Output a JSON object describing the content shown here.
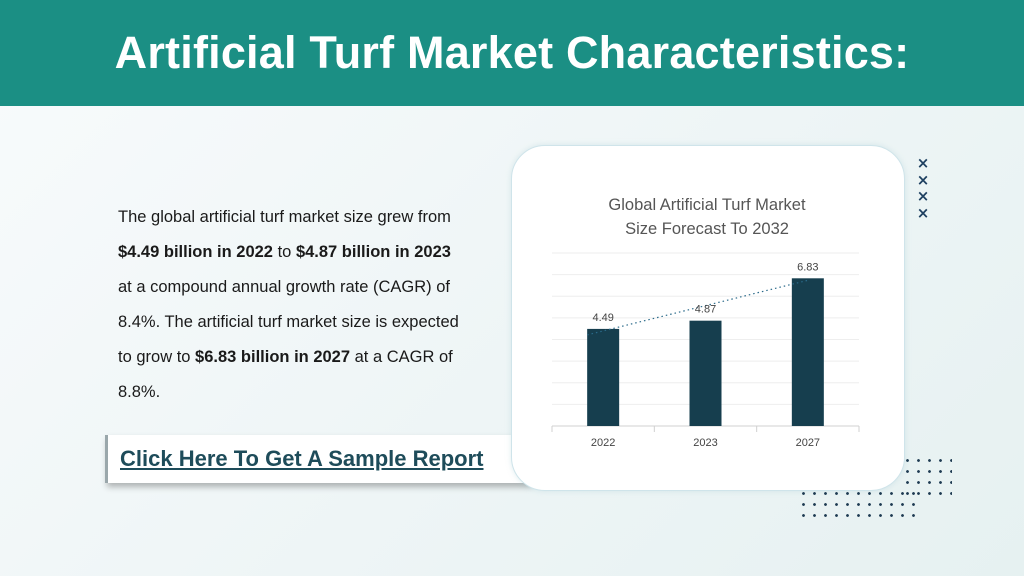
{
  "header": {
    "title": "Artificial Turf Market Characteristics:"
  },
  "body_text": {
    "p1": "The global artificial turf market size grew from ",
    "b1": "$4.49 billion in 2022",
    "p2": " to ",
    "b2": "$4.87 billion in 2023",
    "p3": " at a compound annual growth rate (CAGR) of 8.4%. The artificial turf market size is expected to grow to ",
    "b3": "$6.83 billion in 2027",
    "p4": " at a CAGR of 8.8%."
  },
  "cta": {
    "label": "Click Here To Get A Sample Report"
  },
  "decorations": {
    "x_marks": "××××",
    "accent": "#1b8f84",
    "bar_color": "#163e4e"
  },
  "chart_data": {
    "type": "bar",
    "title": "Global Artificial Turf Market Size Forecast To 2032",
    "title_lines": [
      "Global Artificial Turf Market",
      "Size Forecast To 2032"
    ],
    "categories": [
      "2022",
      "2023",
      "2027"
    ],
    "values": [
      4.49,
      4.87,
      6.83
    ],
    "data_labels": [
      "4.49",
      "4.87",
      "6.83"
    ],
    "trendline": "dotted",
    "xlabel": "",
    "ylabel": "",
    "ylim": [
      0,
      8
    ],
    "grid": true,
    "legend": "none"
  }
}
